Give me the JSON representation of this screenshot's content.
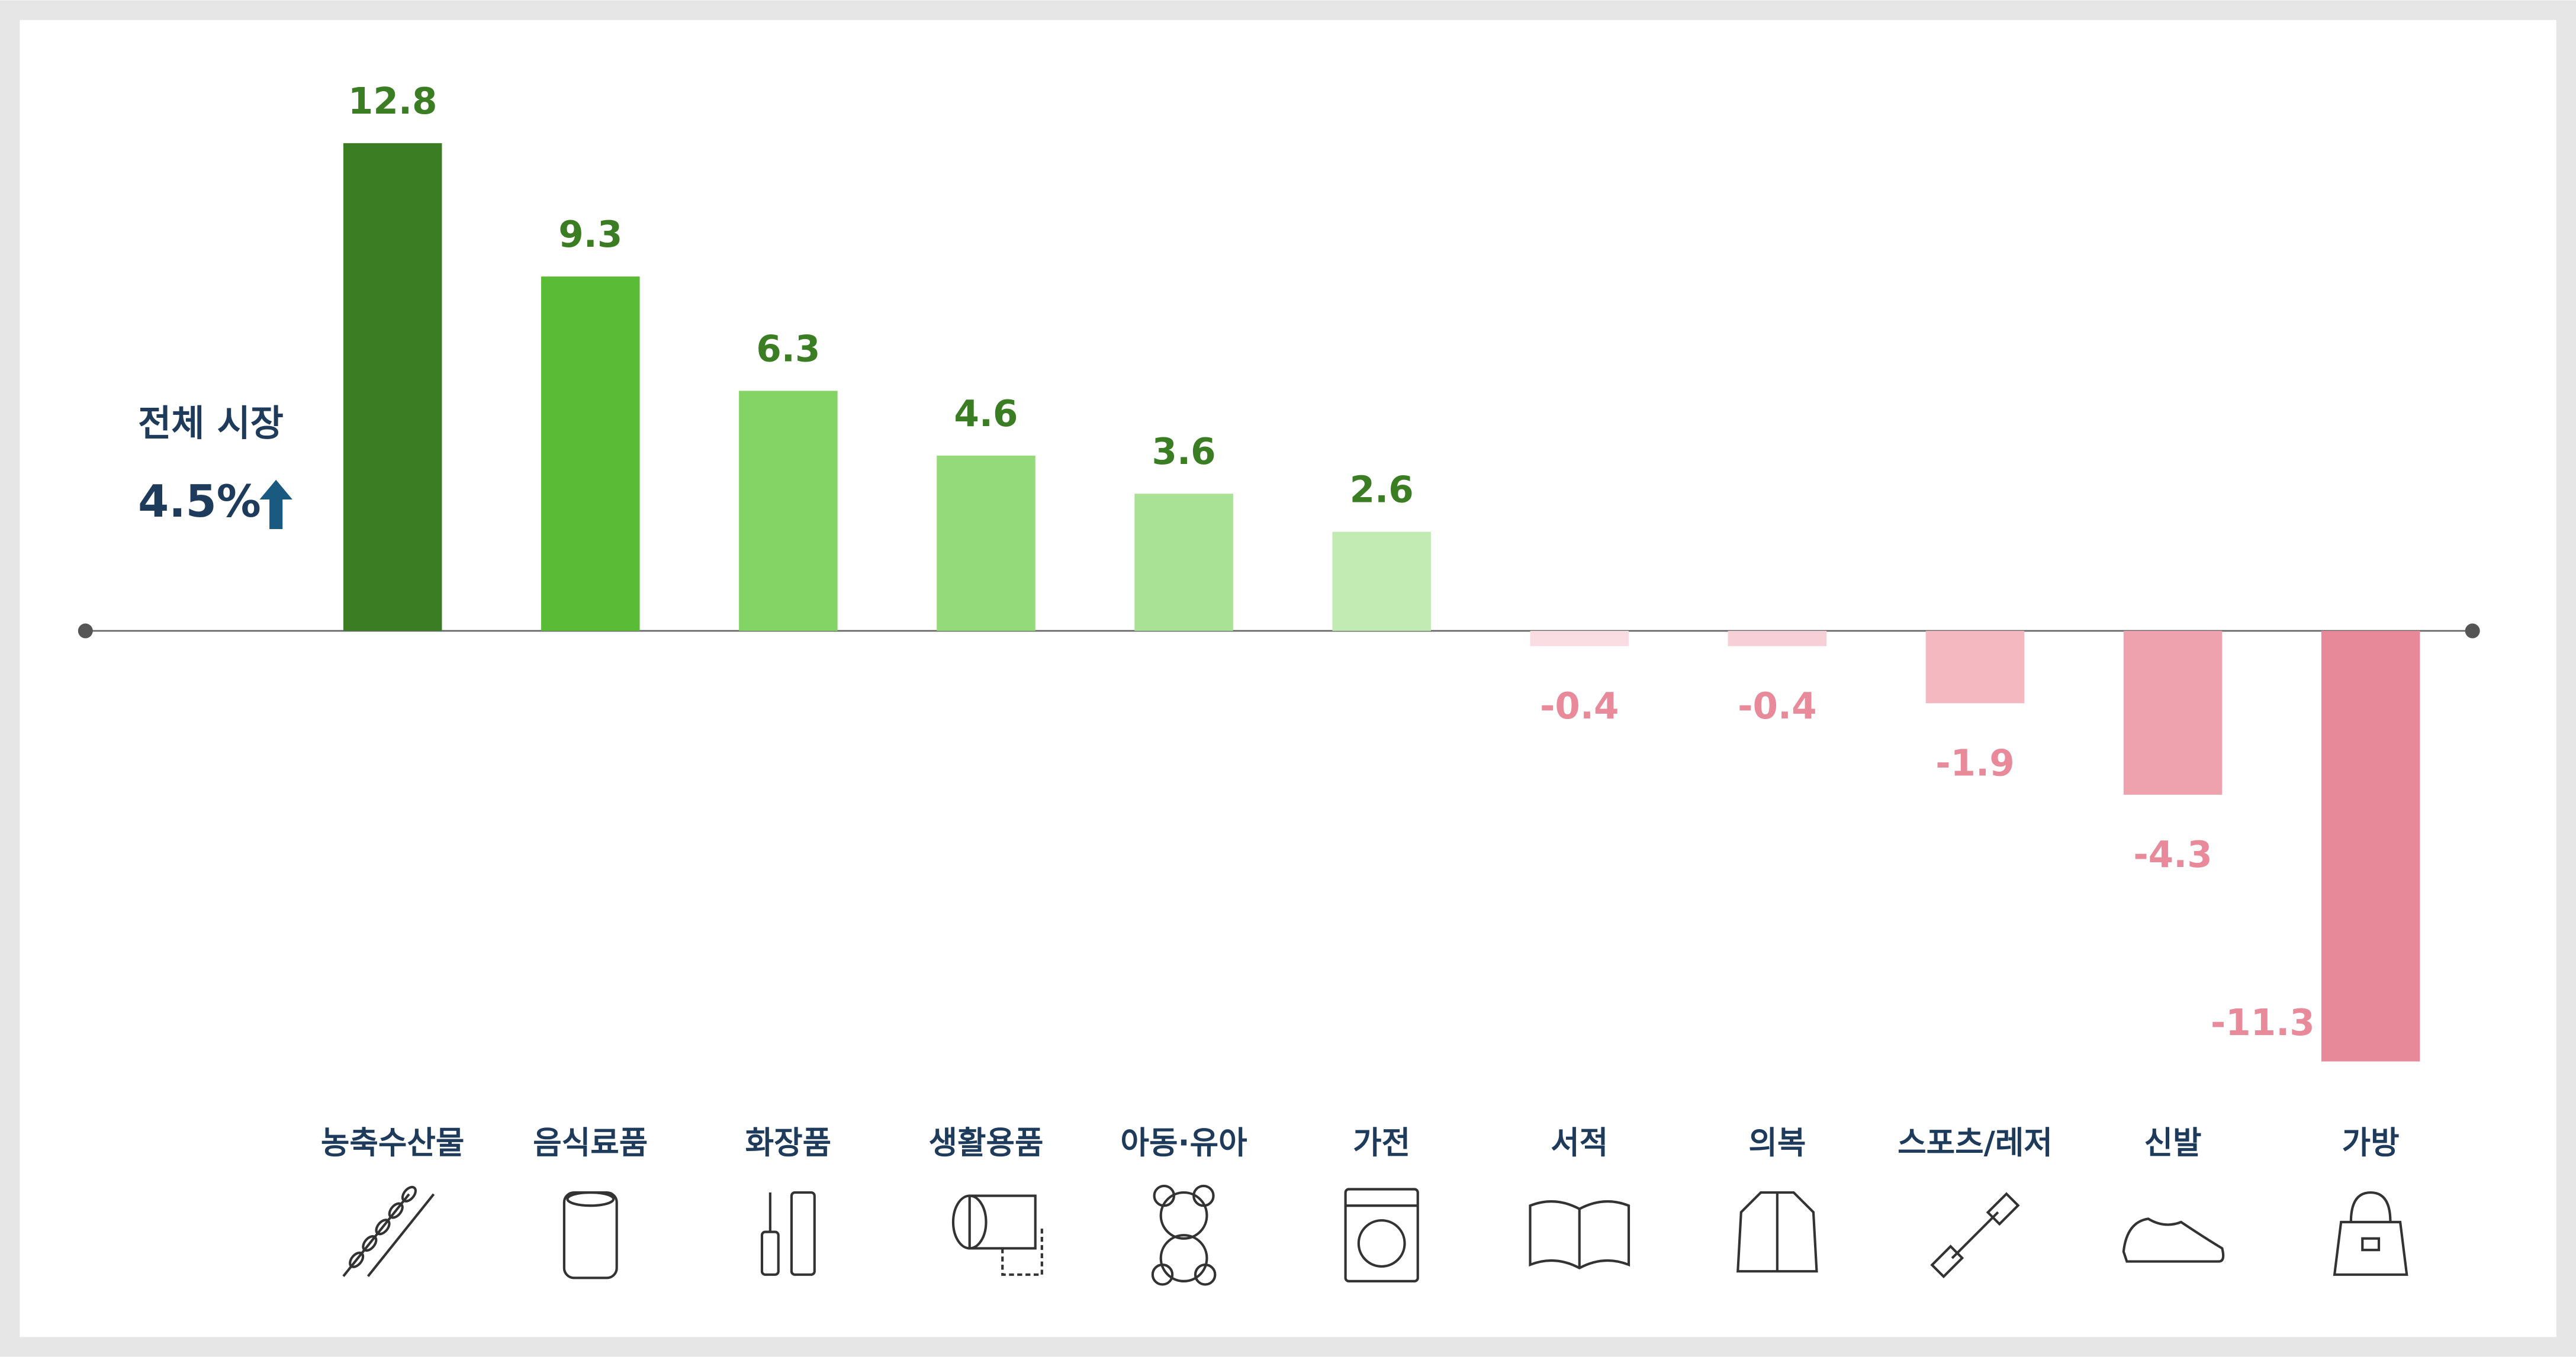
{
  "chart_data": {
    "type": "bar",
    "annotation": {
      "text": "전체 시장",
      "value": "4.5%"
    },
    "categories": [
      "농축수산물",
      "음식료품",
      "화장품",
      "생활용품",
      "아동·유아",
      "가전",
      "서적",
      "의복",
      "스포츠/레저",
      "신발",
      "가방"
    ],
    "values": [
      12.8,
      9.3,
      6.3,
      4.6,
      3.6,
      2.6,
      -0.4,
      -0.4,
      -1.9,
      -4.3,
      -11.3
    ],
    "colors": [
      "#3a7d22",
      "#5abb37",
      "#83d465",
      "#95da7a",
      "#a9e195",
      "#c2eab3",
      "#f9dde2",
      "#f6d0d6",
      "#f3b8c0",
      "#eea2ad",
      "#e8899a"
    ],
    "label_colors": {
      "positive": "#3a7d22",
      "negative": "#e88a9a"
    }
  }
}
